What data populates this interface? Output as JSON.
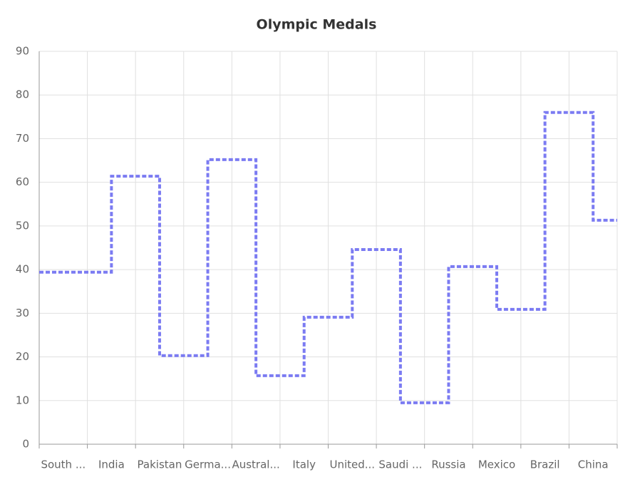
{
  "chart_data": {
    "type": "step",
    "title": "Olympic Medals",
    "categories": [
      "South ...",
      "India",
      "Pakistan",
      "Germa...",
      "Austral...",
      "Italy",
      "United...",
      "Saudi ...",
      "Russia",
      "Mexico",
      "Brazil",
      "China"
    ],
    "series": [
      {
        "color": "#7b7bf2",
        "values": [
          39.4,
          61.4,
          20.3,
          65.2,
          15.7,
          29.1,
          44.6,
          9.5,
          40.7,
          30.9,
          76,
          51.3
        ]
      }
    ],
    "ylim": [
      0,
      90
    ],
    "yticks": [
      0,
      10,
      20,
      30,
      40,
      50,
      60,
      70,
      80,
      90
    ],
    "grid": true
  }
}
